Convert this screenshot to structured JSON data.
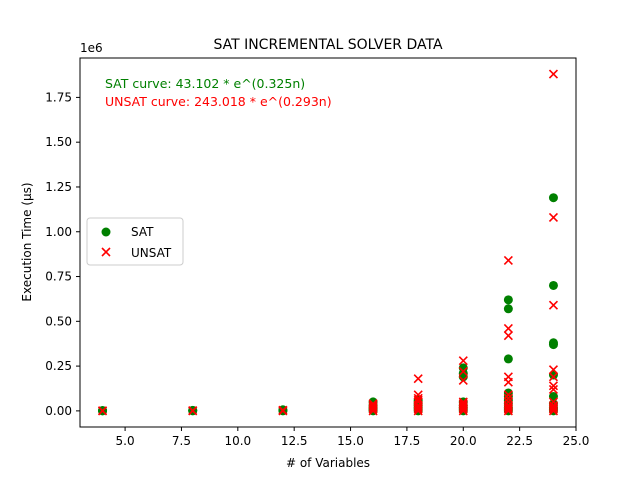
{
  "chart_data": {
    "type": "scatter",
    "title": "SAT INCREMENTAL SOLVER DATA",
    "xlabel": "# of Variables",
    "ylabel": "Execution Time (µs)",
    "y_offset_label": "1e6",
    "xlim": [
      3.0,
      25.0
    ],
    "ylim": [
      -0.09,
      1.97
    ],
    "xticks": [
      5.0,
      7.5,
      10.0,
      12.5,
      15.0,
      17.5,
      20.0,
      22.5,
      25.0
    ],
    "xtick_labels": [
      "5.0",
      "7.5",
      "10.0",
      "12.5",
      "15.0",
      "17.5",
      "20.0",
      "22.5",
      "25.0"
    ],
    "yticks": [
      0.0,
      0.25,
      0.5,
      0.75,
      1.0,
      1.25,
      1.5,
      1.75
    ],
    "ytick_labels": [
      "0.00",
      "0.25",
      "0.50",
      "0.75",
      "1.00",
      "1.25",
      "1.50",
      "1.75"
    ],
    "legend_position": "center-left",
    "annotations": [
      {
        "text": "SAT curve: 43.102 * e^(0.325n)",
        "color": "#008000"
      },
      {
        "text": "UNSAT curve: 243.018 * e^(0.293n)",
        "color": "#ff0000"
      }
    ],
    "series": [
      {
        "name": "SAT",
        "marker": "circle",
        "color": "#008000",
        "points": [
          [
            4,
            0.0
          ],
          [
            4,
            0.001
          ],
          [
            4,
            0.002
          ],
          [
            8,
            0.0
          ],
          [
            8,
            0.002
          ],
          [
            8,
            0.003
          ],
          [
            12,
            0.0
          ],
          [
            12,
            0.003
          ],
          [
            12,
            0.006
          ],
          [
            16,
            0.0
          ],
          [
            16,
            0.005
          ],
          [
            16,
            0.012
          ],
          [
            16,
            0.02
          ],
          [
            16,
            0.03
          ],
          [
            16,
            0.05
          ],
          [
            18,
            0.0
          ],
          [
            18,
            0.01
          ],
          [
            18,
            0.02
          ],
          [
            18,
            0.03
          ],
          [
            18,
            0.04
          ],
          [
            18,
            0.05
          ],
          [
            18,
            0.06
          ],
          [
            20,
            0.0
          ],
          [
            20,
            0.01
          ],
          [
            20,
            0.02
          ],
          [
            20,
            0.03
          ],
          [
            20,
            0.05
          ],
          [
            20,
            0.19
          ],
          [
            20,
            0.21
          ],
          [
            20,
            0.24
          ],
          [
            22,
            0.0
          ],
          [
            22,
            0.01
          ],
          [
            22,
            0.02
          ],
          [
            22,
            0.04
          ],
          [
            22,
            0.06
          ],
          [
            22,
            0.08
          ],
          [
            22,
            0.1
          ],
          [
            22,
            0.29
          ],
          [
            22,
            0.57
          ],
          [
            22,
            0.62
          ],
          [
            24,
            0.0
          ],
          [
            24,
            0.01
          ],
          [
            24,
            0.02
          ],
          [
            24,
            0.04
          ],
          [
            24,
            0.08
          ],
          [
            24,
            0.2
          ],
          [
            24,
            0.37
          ],
          [
            24,
            0.38
          ],
          [
            24,
            0.7
          ],
          [
            24,
            1.19
          ]
        ]
      },
      {
        "name": "UNSAT",
        "marker": "x",
        "color": "#ff0000",
        "points": [
          [
            4,
            0.0
          ],
          [
            4,
            0.001
          ],
          [
            8,
            0.0
          ],
          [
            8,
            0.002
          ],
          [
            12,
            0.0
          ],
          [
            12,
            0.004
          ],
          [
            16,
            0.0
          ],
          [
            16,
            0.01
          ],
          [
            16,
            0.02
          ],
          [
            16,
            0.03
          ],
          [
            16,
            0.04
          ],
          [
            18,
            0.0
          ],
          [
            18,
            0.01
          ],
          [
            18,
            0.02
          ],
          [
            18,
            0.03
          ],
          [
            18,
            0.05
          ],
          [
            18,
            0.06
          ],
          [
            18,
            0.07
          ],
          [
            18,
            0.09
          ],
          [
            18,
            0.18
          ],
          [
            20,
            0.0
          ],
          [
            20,
            0.01
          ],
          [
            20,
            0.02
          ],
          [
            20,
            0.03
          ],
          [
            20,
            0.04
          ],
          [
            20,
            0.05
          ],
          [
            20,
            0.17
          ],
          [
            20,
            0.22
          ],
          [
            20,
            0.28
          ],
          [
            22,
            0.0
          ],
          [
            22,
            0.01
          ],
          [
            22,
            0.02
          ],
          [
            22,
            0.03
          ],
          [
            22,
            0.05
          ],
          [
            22,
            0.07
          ],
          [
            22,
            0.09
          ],
          [
            22,
            0.16
          ],
          [
            22,
            0.19
          ],
          [
            22,
            0.42
          ],
          [
            22,
            0.46
          ],
          [
            22,
            0.84
          ],
          [
            24,
            0.0
          ],
          [
            24,
            0.01
          ],
          [
            24,
            0.02
          ],
          [
            24,
            0.03
          ],
          [
            24,
            0.05
          ],
          [
            24,
            0.12
          ],
          [
            24,
            0.14
          ],
          [
            24,
            0.19
          ],
          [
            24,
            0.23
          ],
          [
            24,
            0.59
          ],
          [
            24,
            1.08
          ],
          [
            24,
            1.88
          ]
        ]
      }
    ]
  }
}
